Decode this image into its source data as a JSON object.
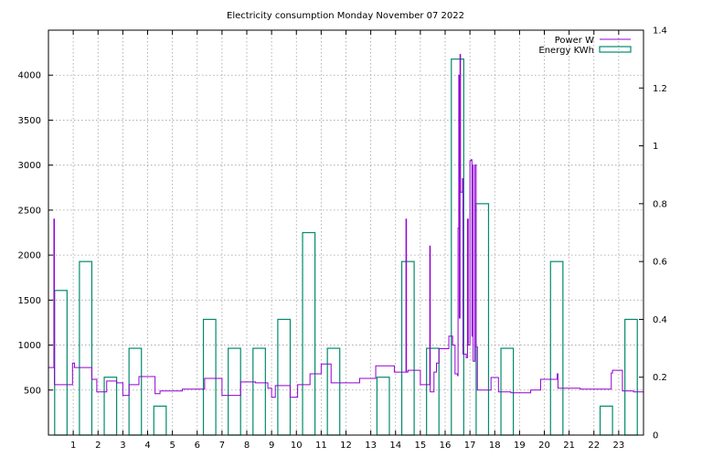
{
  "chart_data": {
    "type": "bar+line",
    "title": "Electricity consumption Monday November 07 2022",
    "x_ticks": [
      "1",
      "2",
      "3",
      "4",
      "5",
      "6",
      "7",
      "8",
      "9",
      "10",
      "11",
      "12",
      "13",
      "14",
      "15",
      "16",
      "17",
      "18",
      "19",
      "20",
      "21",
      "22",
      "23"
    ],
    "xlim": [
      0,
      24
    ],
    "y_left": {
      "ticks": [
        "500",
        "1000",
        "1500",
        "2000",
        "2500",
        "3000",
        "3500",
        "4000"
      ],
      "range": [
        0,
        4500
      ]
    },
    "y_right": {
      "ticks": [
        "0",
        "0.2",
        "0.4",
        "0.6",
        "0.8",
        "1",
        "1.2",
        "1.4"
      ],
      "range": [
        0,
        1.4
      ]
    },
    "grid": true,
    "legend_position": "top-right",
    "series": [
      {
        "name": "Power W",
        "axis": "left",
        "color": "#9400d3",
        "points": [
          [
            0,
            750
          ],
          [
            0.2,
            750
          ],
          [
            0.22,
            2400
          ],
          [
            0.24,
            560
          ],
          [
            0.95,
            560
          ],
          [
            0.97,
            800
          ],
          [
            1.05,
            750
          ],
          [
            1.65,
            750
          ],
          [
            1.75,
            620
          ],
          [
            1.95,
            480
          ],
          [
            2.3,
            480
          ],
          [
            2.35,
            600
          ],
          [
            2.7,
            600
          ],
          [
            2.75,
            580
          ],
          [
            2.95,
            580
          ],
          [
            3.0,
            440
          ],
          [
            3.2,
            440
          ],
          [
            3.25,
            560
          ],
          [
            3.6,
            560
          ],
          [
            3.65,
            650
          ],
          [
            4.2,
            650
          ],
          [
            4.3,
            460
          ],
          [
            4.5,
            490
          ],
          [
            5.3,
            490
          ],
          [
            5.4,
            510
          ],
          [
            6.2,
            510
          ],
          [
            6.3,
            630
          ],
          [
            6.95,
            630
          ],
          [
            7.0,
            440
          ],
          [
            7.7,
            440
          ],
          [
            7.75,
            590
          ],
          [
            8.3,
            590
          ],
          [
            8.35,
            580
          ],
          [
            8.8,
            580
          ],
          [
            8.85,
            520
          ],
          [
            8.95,
            520
          ],
          [
            9.0,
            420
          ],
          [
            9.1,
            420
          ],
          [
            9.15,
            550
          ],
          [
            9.7,
            550
          ],
          [
            9.75,
            420
          ],
          [
            10.0,
            420
          ],
          [
            10.05,
            560
          ],
          [
            10.5,
            560
          ],
          [
            10.55,
            680
          ],
          [
            10.95,
            680
          ],
          [
            11.0,
            790
          ],
          [
            11.35,
            790
          ],
          [
            11.4,
            580
          ],
          [
            12.5,
            580
          ],
          [
            12.55,
            630
          ],
          [
            13.15,
            630
          ],
          [
            13.2,
            770
          ],
          [
            13.9,
            770
          ],
          [
            13.95,
            700
          ],
          [
            14.4,
            700
          ],
          [
            14.42,
            2400
          ],
          [
            14.44,
            700
          ],
          [
            14.5,
            720
          ],
          [
            14.95,
            720
          ],
          [
            15.0,
            560
          ],
          [
            15.35,
            560
          ],
          [
            15.38,
            2100
          ],
          [
            15.4,
            480
          ],
          [
            15.5,
            480
          ],
          [
            15.55,
            700
          ],
          [
            15.65,
            800
          ],
          [
            15.75,
            960
          ],
          [
            16.1,
            960
          ],
          [
            16.15,
            1100
          ],
          [
            16.3,
            1000
          ],
          [
            16.4,
            680
          ],
          [
            16.5,
            660
          ],
          [
            16.52,
            2300
          ],
          [
            16.55,
            4000
          ],
          [
            16.57,
            1300
          ],
          [
            16.6,
            4230
          ],
          [
            16.62,
            2700
          ],
          [
            16.7,
            2850
          ],
          [
            16.72,
            900
          ],
          [
            16.85,
            860
          ],
          [
            16.9,
            2400
          ],
          [
            16.93,
            1000
          ],
          [
            17.0,
            3050
          ],
          [
            17.05,
            3060
          ],
          [
            17.08,
            1100
          ],
          [
            17.1,
            3000
          ],
          [
            17.13,
            820
          ],
          [
            17.2,
            3000
          ],
          [
            17.25,
            980
          ],
          [
            17.3,
            500
          ],
          [
            17.8,
            500
          ],
          [
            17.85,
            640
          ],
          [
            18.1,
            640
          ],
          [
            18.15,
            480
          ],
          [
            18.6,
            480
          ],
          [
            18.65,
            470
          ],
          [
            19.4,
            470
          ],
          [
            19.45,
            500
          ],
          [
            19.8,
            500
          ],
          [
            19.85,
            620
          ],
          [
            20.5,
            620
          ],
          [
            20.52,
            680
          ],
          [
            20.55,
            520
          ],
          [
            21.4,
            520
          ],
          [
            21.45,
            510
          ],
          [
            22.6,
            510
          ],
          [
            22.7,
            690
          ],
          [
            22.75,
            720
          ],
          [
            23.1,
            720
          ],
          [
            23.15,
            490
          ],
          [
            23.6,
            480
          ],
          [
            23.9,
            480
          ],
          [
            24,
            560
          ]
        ]
      },
      {
        "name": "Energy KWh",
        "axis": "right",
        "color": "#008b6b",
        "bars": [
          [
            0,
            0.5
          ],
          [
            1,
            0.6
          ],
          [
            2,
            0.2
          ],
          [
            3,
            0.3
          ],
          [
            4,
            0.1
          ],
          [
            5,
            0
          ],
          [
            6,
            0.4
          ],
          [
            7,
            0.3
          ],
          [
            8,
            0.3
          ],
          [
            9,
            0.4
          ],
          [
            10,
            0.7
          ],
          [
            11,
            0.3
          ],
          [
            12,
            0
          ],
          [
            13,
            0.2
          ],
          [
            14,
            0.6
          ],
          [
            15,
            0.3
          ],
          [
            16,
            1.3
          ],
          [
            17,
            0.8
          ],
          [
            18,
            0.3
          ],
          [
            19,
            0
          ],
          [
            20,
            0.6
          ],
          [
            21,
            0
          ],
          [
            22,
            0.1
          ],
          [
            23,
            0.4
          ]
        ]
      }
    ]
  }
}
